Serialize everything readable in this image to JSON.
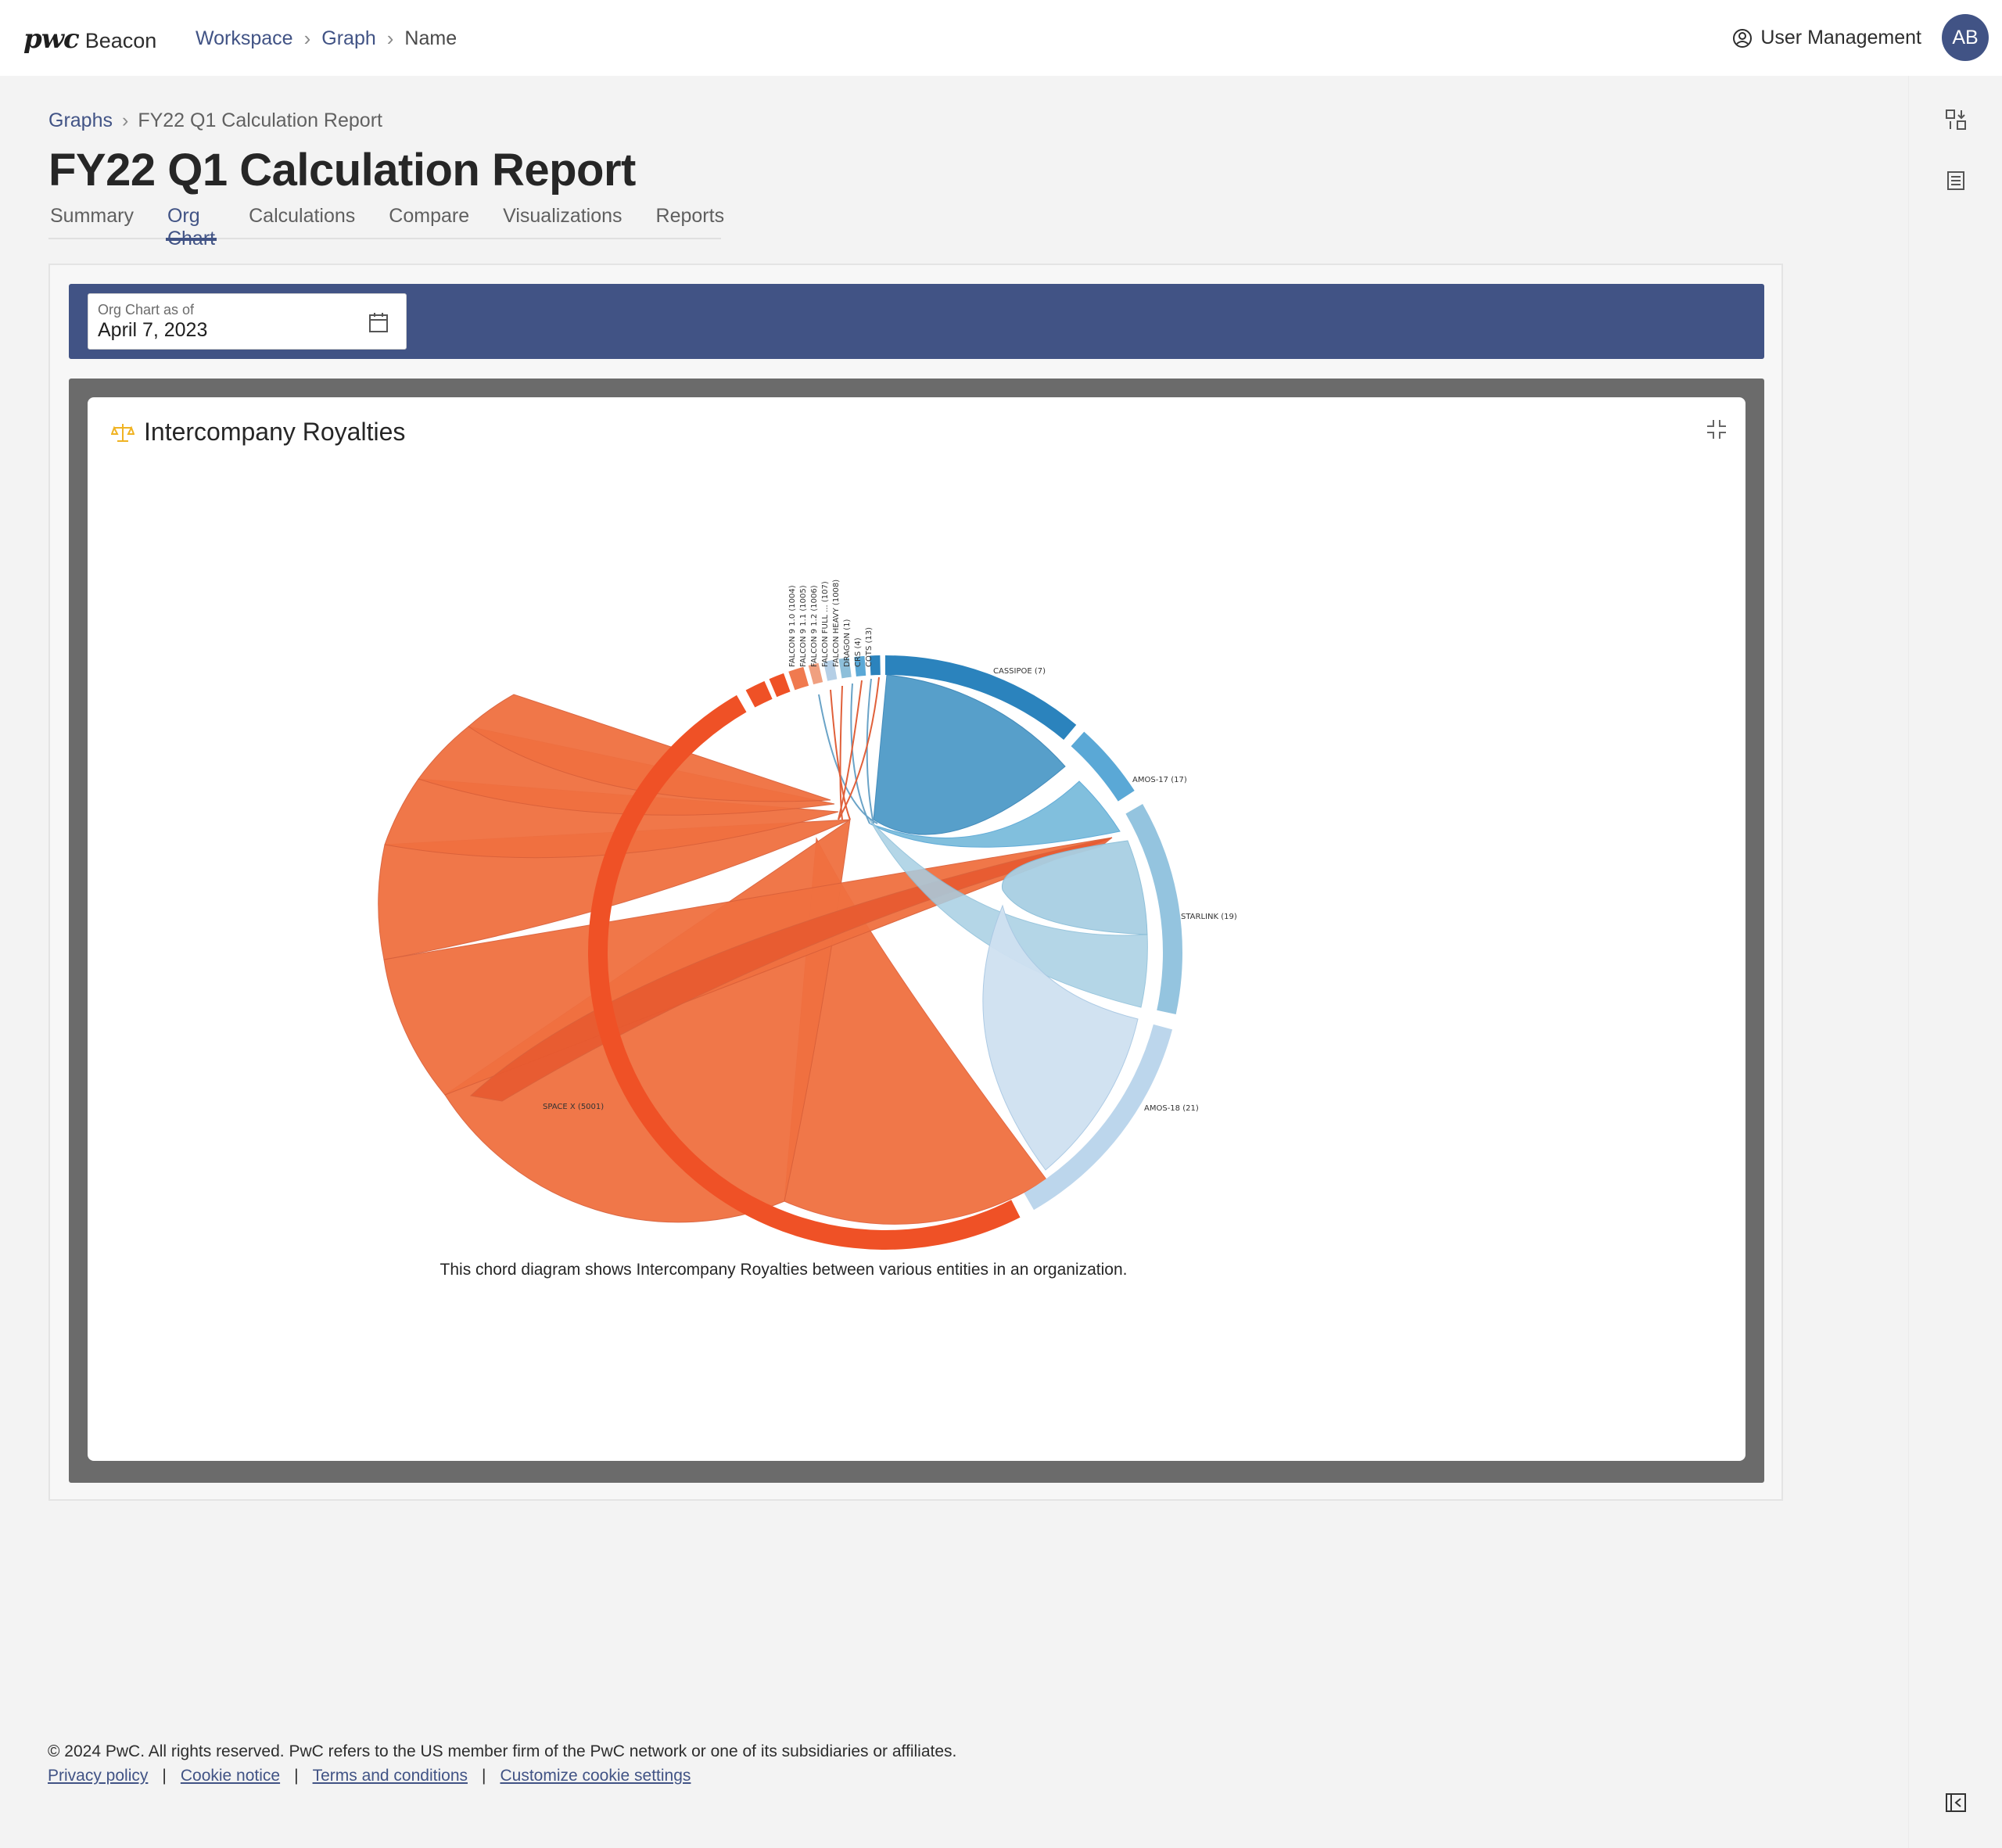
{
  "header": {
    "brand_mark": "pwc",
    "brand_name": "Beacon",
    "breadcrumb": [
      "Workspace",
      "Graph",
      "Name"
    ],
    "user_management_label": "User Management",
    "avatar_initials": "AB"
  },
  "page": {
    "breadcrumb": [
      "Graphs",
      "FY22 Q1 Calculation Report"
    ],
    "title": "FY22 Q1 Calculation Report",
    "tabs": [
      {
        "label": "Summary",
        "active": false
      },
      {
        "label": "Org Chart",
        "active": true
      },
      {
        "label": "Calculations",
        "active": false
      },
      {
        "label": "Compare",
        "active": false
      },
      {
        "label": "Visualizations",
        "active": false
      },
      {
        "label": "Reports",
        "active": false
      }
    ]
  },
  "toolbar": {
    "date_label": "Org Chart as of",
    "date_value": "April 7, 2023"
  },
  "card": {
    "title": "Intercompany Royalties",
    "caption": "This chord diagram shows Intercompany Royalties between various entities in an organization."
  },
  "chart_data": {
    "type": "chord",
    "title": "Intercompany Royalties",
    "groups": [
      {
        "label": "CASSIPOE (7)",
        "color": "#2b83bd"
      },
      {
        "label": "AMOS-17 (17)",
        "color": "#5aa8d6"
      },
      {
        "label": "STARLINK (19)",
        "color": "#94c4df"
      },
      {
        "label": "AMOS-18 (21)",
        "color": "#bcd6ec"
      },
      {
        "label": "SPACE X (5001)",
        "color": "#ef5126"
      },
      {
        "label": "FALCON 9 1.0 (1004)",
        "color": "#ef5126"
      },
      {
        "label": "FALCON 9 1.1 (1005)",
        "color": "#ef5126"
      },
      {
        "label": "FALCON 9 1.2 (1006)",
        "color": "#f07a4f"
      },
      {
        "label": "FALCON FULL ... (107)",
        "color": "#f0a080"
      },
      {
        "label": "FALCON HEAVY (1008)",
        "color": "#b5cfe6"
      },
      {
        "label": "DRAGON (1)",
        "color": "#8dbfda"
      },
      {
        "label": "CRS (4)",
        "color": "#5aa8d6"
      },
      {
        "label": "COTS (13)",
        "color": "#2b83bd"
      }
    ]
  },
  "footer": {
    "copyright": "© 2024 PwC. All rights reserved. PwC refers to the US member firm of the PwC network or one of its subsidiaries or affiliates.",
    "links": [
      "Privacy policy",
      "Cookie notice",
      "Terms and conditions",
      "Customize cookie settings"
    ]
  }
}
